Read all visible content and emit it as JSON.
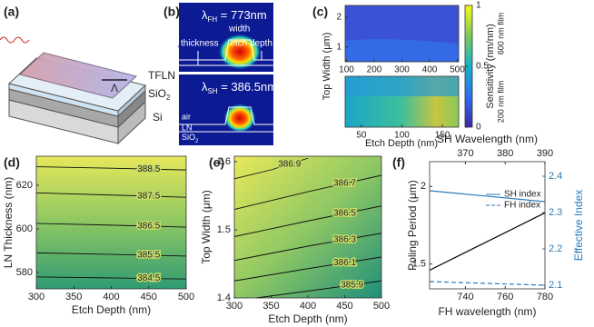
{
  "figure_labels": [
    "(a)",
    "(b)",
    "(c)",
    "(d)",
    "(e)",
    "(f)"
  ],
  "schematic": {
    "layers": [
      "TFLN",
      "SiO",
      "Si"
    ],
    "layer_subscript": "2",
    "period": "Λ"
  },
  "modes": {
    "fh": {
      "symbol": "λ",
      "subscript": "FH",
      "text": " = 773nm"
    },
    "sh": {
      "symbol": "λ",
      "subscript": "SH",
      "text": " = 386.5nm"
    },
    "dimensions": [
      "width",
      "thickness",
      "etch depth"
    ],
    "materials": [
      "air",
      "LN",
      "SiO"
    ],
    "material_subscript": "2"
  },
  "chart_data": [
    {
      "type": "heatmap",
      "xlim": [
        95,
        505
      ],
      "xticks": [
        100,
        200,
        300,
        400,
        500
      ],
      "ylim": [
        0.5,
        2.4
      ],
      "yticks": [
        1,
        2
      ],
      "ylabel": "Top Width (μm)",
      "annotation": "600 nm film"
    },
    {
      "type": "heatmap",
      "xlim": [
        30,
        170
      ],
      "xticks": [
        50,
        100,
        150
      ],
      "xlabel": "Etch Depth (nm)",
      "annotation": "200 nm film"
    },
    {
      "type": "colorbar",
      "ylim": [
        0,
        1
      ],
      "yticks": [
        0,
        0.5,
        1
      ],
      "ylabel": "Sensitivity (nm/nm)"
    },
    {
      "type": "contour",
      "xlim": [
        300,
        500
      ],
      "xticks": [
        300,
        350,
        400,
        450,
        500
      ],
      "ylim": [
        572.5,
        633.3
      ],
      "yticks": [
        580,
        600,
        620
      ],
      "xlabel": "Etch Depth (nm)",
      "ylabel": "LN Thickness (nm)",
      "contours": [
        {
          "level": 388.5,
          "x": [
            300,
            400,
            500
          ],
          "y": [
            628.5,
            627.8,
            627
          ]
        },
        {
          "level": 387.5,
          "x": [
            300,
            400,
            500
          ],
          "y": [
            616.5,
            615.5,
            614.5
          ]
        },
        {
          "level": 386.5,
          "x": [
            300,
            400,
            500
          ],
          "y": [
            602.5,
            601.7,
            600.8
          ]
        },
        {
          "level": 385.5,
          "x": [
            300,
            400,
            500
          ],
          "y": [
            589,
            588.3,
            587.5
          ]
        },
        {
          "level": 384.5,
          "x": [
            300,
            400,
            500
          ],
          "y": [
            578,
            577.5,
            577
          ]
        }
      ]
    },
    {
      "type": "contour",
      "xlim": [
        300,
        500
      ],
      "xticks": [
        300,
        350,
        400,
        450,
        500
      ],
      "ylim": [
        1.4,
        1.608
      ],
      "yticks": [
        1.4,
        1.5,
        1.6
      ],
      "xlabel": "Etch Depth (nm)",
      "ylabel": "Top Width (μm)",
      "contours": [
        {
          "level": 386.9,
          "x": [
            300,
            350,
            400
          ],
          "y": [
            1.575,
            1.588,
            1.605
          ]
        },
        {
          "level": 386.7,
          "x": [
            300,
            400,
            500
          ],
          "y": [
            1.53,
            1.556,
            1.58
          ]
        },
        {
          "level": 386.5,
          "x": [
            300,
            400,
            500
          ],
          "y": [
            1.49,
            1.513,
            1.535
          ]
        },
        {
          "level": 386.3,
          "x": [
            300,
            400,
            500
          ],
          "y": [
            1.455,
            1.476,
            1.495
          ]
        },
        {
          "level": 386.1,
          "x": [
            300,
            400,
            500
          ],
          "y": [
            1.425,
            1.443,
            1.46
          ]
        },
        {
          "level": 385.9,
          "x": [
            330,
            420,
            500
          ],
          "y": [
            1.4,
            1.413,
            1.425
          ]
        }
      ]
    },
    {
      "type": "line",
      "xlim": [
        722,
        780
      ],
      "xticks": [
        740,
        760,
        780
      ],
      "x2lim": [
        361,
        390
      ],
      "x2ticks": [
        370,
        380,
        390
      ],
      "ylim": [
        1.34,
        2.16
      ],
      "yticks": [
        1.5,
        2
      ],
      "y2lim": [
        2.09,
        2.44
      ],
      "y2ticks": [
        2.1,
        2.2,
        2.3,
        2.4
      ],
      "xlabel": "FH wavelength (nm)",
      "x2label": "SH Wavelength (nm)",
      "ylabel": "Poling Period (μm)",
      "y2label": "Effective Index",
      "x": [
        722,
        780
      ],
      "series": [
        {
          "color": "#000000",
          "values": [
            1.46,
            1.83
          ]
        },
        {
          "name": "SH index",
          "color": "#2a7ab8",
          "axis": "y2",
          "values": [
            2.36,
            2.33
          ]
        },
        {
          "name": "FH index",
          "color": "#2a7ab8",
          "axis": "y2",
          "style": "dashed",
          "values": [
            2.11,
            2.1
          ]
        }
      ]
    }
  ]
}
